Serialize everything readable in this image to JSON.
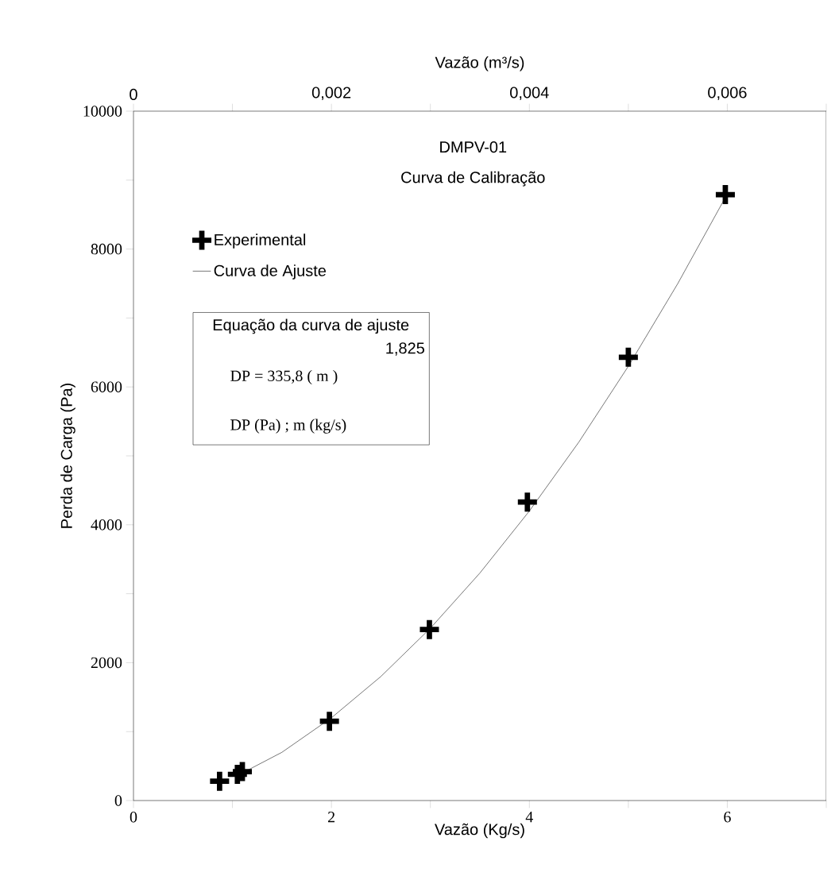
{
  "chart_data": {
    "type": "scatter",
    "title": "DMPV-01",
    "subtitle": "Curva de Calibração",
    "xlabel": "Vazão (Kg/s)",
    "ylabel": "Perda de Carga (Pa)",
    "x2label": "Vazão (m³/s)",
    "series": [
      {
        "name": "Experimental",
        "color": "#000000",
        "marker": "cross",
        "x": [
          0.87,
          1.05,
          1.1,
          1.98,
          2.99,
          3.98,
          5.0,
          5.98
        ],
        "values": [
          280,
          380,
          420,
          1150,
          2480,
          4330,
          6430,
          8790
        ]
      },
      {
        "name": "Curva de Ajuste",
        "type": "line",
        "color": "#000000",
        "marker": "none",
        "line_style": "solid",
        "x": [
          1.1,
          1.5,
          2,
          2.5,
          3,
          3.5,
          4,
          4.5,
          5,
          5.5,
          6
        ],
        "values": [
          400,
          700,
          1200,
          1800,
          2500,
          3300,
          4200,
          5200,
          6300,
          7500,
          8800
        ]
      }
    ],
    "xlim": [
      0,
      7
    ],
    "xticks": [
      0,
      {
        "value": 1,
        "label": null
      },
      2,
      {
        "value": 3,
        "label": null
      },
      4,
      {
        "value": 5,
        "label": null
      },
      6,
      {
        "value": 7,
        "label": null
      }
    ],
    "ylim": [
      0,
      10000
    ],
    "yticks": [
      0,
      {
        "value": 1000,
        "label": null
      },
      2000,
      {
        "value": 3000,
        "label": null
      },
      4000,
      {
        "value": 5000,
        "label": null
      },
      6000,
      {
        "value": 7000,
        "label": null
      },
      8000,
      {
        "value": 9000,
        "label": null
      },
      10000
    ],
    "x2lim": [
      0,
      0.007
    ],
    "x2ticks": [
      0,
      {
        "value": 0.001,
        "label": null
      },
      {
        "value": 0.002,
        "label": "0,002"
      },
      {
        "value": 0.003,
        "label": null
      },
      {
        "value": 0.004,
        "label": "0,004"
      },
      {
        "value": 0.005,
        "label": null
      },
      {
        "value": 0.006,
        "label": "0,006"
      },
      {
        "value": 0.007,
        "label": null
      }
    ],
    "annotations": [
      "Equação da curva de ajuste",
      "1,825",
      "DP = 335,8 ( m )",
      "DP (Pa) ; m (kg/s)"
    ],
    "legend": "top left",
    "grid": false
  }
}
